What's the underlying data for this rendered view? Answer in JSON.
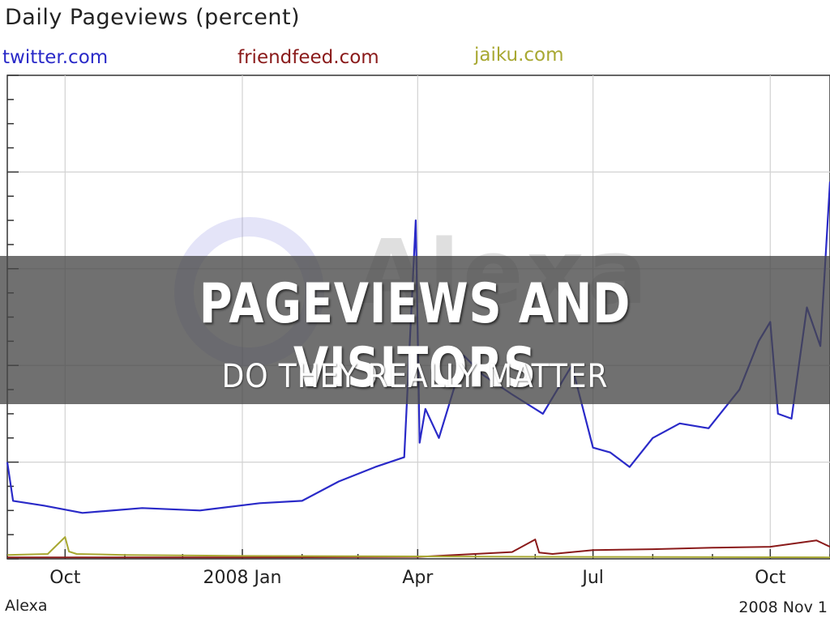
{
  "banner": {
    "title": "PAGEVIEWS AND VISITORS",
    "subtitle": "DO THEY REALLY MATTER"
  },
  "footer": {
    "source": "Alexa",
    "date": "2008 Nov 1"
  },
  "watermark": {
    "text": "Alexa"
  },
  "chart_data": {
    "type": "line",
    "title": "Daily Pageviews (percent)",
    "xlabel": "",
    "ylabel": "",
    "x_ticks": [
      "Oct",
      "2008 Jan",
      "Apr",
      "Jul",
      "Oct"
    ],
    "x_domain": [
      "2007-09-01",
      "2008-11-01"
    ],
    "ylim": [
      0,
      100
    ],
    "grid": true,
    "legend_position": "top",
    "series": [
      {
        "name": "twitter.com",
        "color": "#2a2ac8",
        "x": [
          "2007-09-01",
          "2007-09-04",
          "2007-09-20",
          "2007-10-10",
          "2007-11-10",
          "2007-12-10",
          "2008-01-10",
          "2008-02-01",
          "2008-02-20",
          "2008-03-10",
          "2008-03-25",
          "2008-03-31",
          "2008-04-02",
          "2008-04-05",
          "2008-04-12",
          "2008-04-25",
          "2008-05-05",
          "2008-05-20",
          "2008-06-05",
          "2008-06-20",
          "2008-07-01",
          "2008-07-10",
          "2008-07-20",
          "2008-08-01",
          "2008-08-15",
          "2008-08-30",
          "2008-09-15",
          "2008-09-25",
          "2008-10-01",
          "2008-10-05",
          "2008-10-12",
          "2008-10-20",
          "2008-10-27",
          "2008-11-01"
        ],
        "values": [
          20,
          12,
          11,
          9.5,
          10.5,
          10,
          11.5,
          12,
          16,
          19,
          21,
          70,
          24,
          31,
          25,
          42,
          38,
          34,
          30,
          40,
          23,
          22,
          19,
          25,
          28,
          27,
          35,
          45,
          49,
          30,
          29,
          52,
          44,
          78
        ]
      },
      {
        "name": "friendfeed.com",
        "color": "#8a1a1a",
        "x": [
          "2007-09-01",
          "2008-01-01",
          "2008-04-01",
          "2008-05-20",
          "2008-06-01",
          "2008-06-03",
          "2008-06-10",
          "2008-07-01",
          "2008-08-01",
          "2008-09-01",
          "2008-10-01",
          "2008-10-25",
          "2008-11-01"
        ],
        "values": [
          0.3,
          0.3,
          0.4,
          1.4,
          4.0,
          1.3,
          1.0,
          1.8,
          2.0,
          2.3,
          2.5,
          3.8,
          2.5
        ]
      },
      {
        "name": "jaiku.com",
        "color": "#a8a832",
        "x": [
          "2007-09-01",
          "2007-09-22",
          "2007-10-01",
          "2007-10-03",
          "2007-10-07",
          "2007-11-01",
          "2008-01-01",
          "2008-04-01",
          "2008-07-01",
          "2008-11-01"
        ],
        "values": [
          0.8,
          1.0,
          4.5,
          1.5,
          1.0,
          0.8,
          0.6,
          0.5,
          0.4,
          0.3
        ]
      }
    ]
  }
}
